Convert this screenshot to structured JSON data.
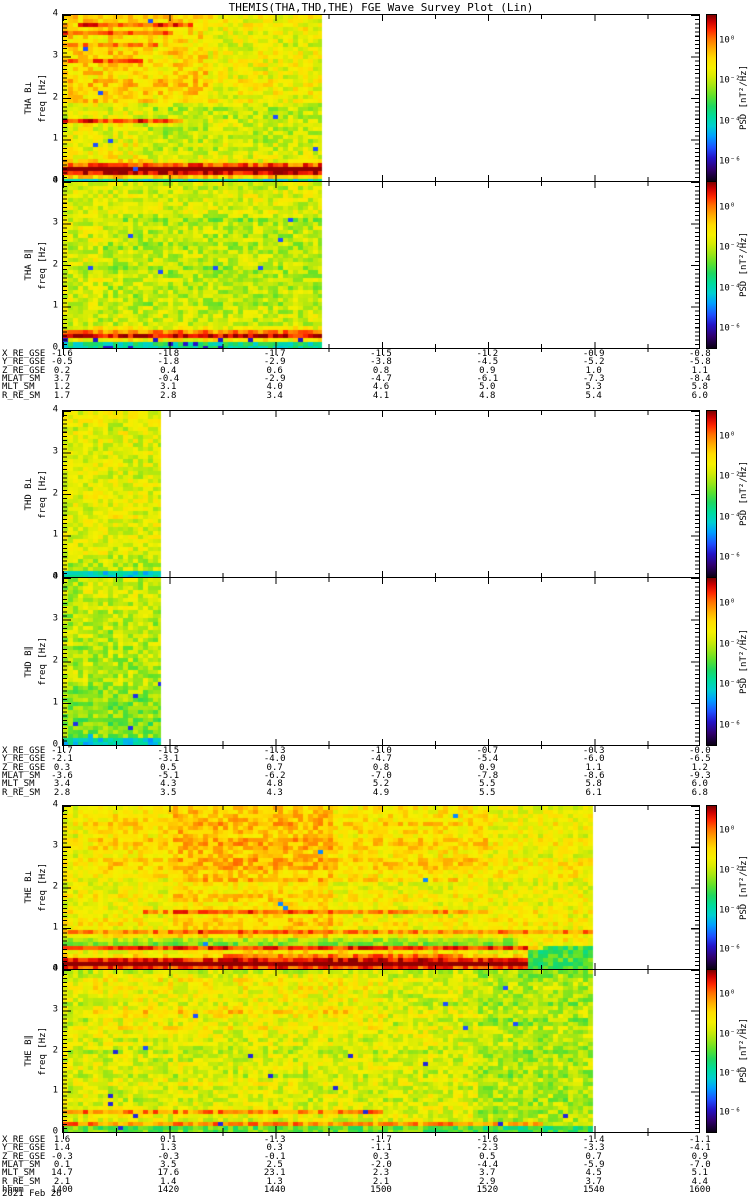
{
  "title": "THEMIS(THA,THD,THE) FGE Wave Survey Plot (Lin)",
  "colorbar": {
    "label": "PSD [nT²/Hz]",
    "ticks": [
      "10⁰",
      "10⁻²",
      "10⁻⁴",
      "10⁻⁶"
    ]
  },
  "axis": {
    "freq_label": "freq [Hz]",
    "yticks": [
      "4",
      "3",
      "2",
      "1",
      "0"
    ],
    "time_label": "hhmm",
    "date_label": "2021 Feb 26"
  },
  "chart_data": {
    "type": "heatmap",
    "subtype": "wave-power-spectrogram",
    "ylim": [
      0,
      4
    ],
    "ylabel": "freq [Hz]",
    "colorbar_label": "PSD [nT²/Hz]",
    "colorbar_ticks": [
      "10⁰",
      "10⁻²",
      "10⁻⁴",
      "10⁻⁶"
    ],
    "time_ticks": [
      "1400",
      "1420",
      "1440",
      "1500",
      "1520",
      "1540",
      "1600"
    ],
    "date": "2021 Feb 26",
    "groups": [
      {
        "probe": "THA",
        "panels": [
          {
            "name": "THA B⊥",
            "ylabel": "freq [Hz]",
            "coverage": 0.407,
            "seed": 11,
            "base": 0.67,
            "noise": 0.085,
            "shades": [
              {
                "f0": 1.9,
                "f1": 4.0,
                "x0": 0,
                "x1": 0.55,
                "dv": 0.06
              },
              {
                "f0": 0.45,
                "f1": 1.9,
                "x0": 0.3,
                "x1": 1,
                "dv": -0.05
              },
              {
                "f0": 0.0,
                "f1": 0.09,
                "x0": 0,
                "x1": 1,
                "dv": -0.3
              }
            ],
            "bands": [
              {
                "f": 0.27,
                "hw": 0.11,
                "amp": 0.34,
                "x0": 0,
                "x1": 1
              },
              {
                "f": 0.27,
                "hw": 0.2,
                "amp": 0.1,
                "x0": 0,
                "x1": 1
              },
              {
                "f": 1.45,
                "hw": 0.04,
                "amp": 0.22,
                "x0": 0,
                "x1": 0.45
              },
              {
                "f": 3.55,
                "hw": 0.05,
                "amp": 0.18,
                "x0": 0,
                "x1": 0.42
              },
              {
                "f": 3.3,
                "hw": 0.035,
                "amp": 0.16,
                "x0": 0,
                "x1": 0.35
              },
              {
                "f": 2.9,
                "hw": 0.03,
                "amp": 0.13,
                "x0": 0,
                "x1": 0.3
              },
              {
                "f": 3.75,
                "hw": 0.03,
                "amp": 0.15,
                "x0": 0.05,
                "x1": 0.5
              }
            ],
            "specks": [
              {
                "p": 0.003,
                "v": 0.2,
                "f0": 0,
                "f1": 4
              }
            ]
          },
          {
            "name": "THA B∥",
            "ylabel": "freq [Hz]",
            "coverage": 0.407,
            "seed": 22,
            "base": 0.63,
            "noise": 0.085,
            "shades": [
              {
                "f0": 0.0,
                "f1": 0.18,
                "x0": 0,
                "x1": 1,
                "dv": -0.24
              },
              {
                "f0": 1.0,
                "f1": 3.2,
                "x0": 0.15,
                "x1": 1,
                "dv": -0.035
              }
            ],
            "bands": [
              {
                "f": 0.32,
                "hw": 0.08,
                "amp": 0.3,
                "x0": 0,
                "x1": 1
              },
              {
                "f": 0.32,
                "hw": 0.15,
                "amp": 0.08,
                "x0": 0,
                "x1": 1
              }
            ],
            "specks": [
              {
                "p": 0.004,
                "v": 0.2,
                "f0": 0,
                "f1": 4
              },
              {
                "p": 0.08,
                "v": 0.14,
                "f0": 0,
                "f1": 0.25
              }
            ]
          }
        ],
        "ephemeris": {
          "rows": [
            {
              "label": "X_RE_GSE",
              "values": [
                "-1.6",
                "-1.8",
                "-1.7",
                "-1.5",
                "-1.2",
                "-0.9",
                "-0.8"
              ]
            },
            {
              "label": "Y_RE_GSE",
              "values": [
                "-0.5",
                "-1.8",
                "-2.9",
                "-3.8",
                "-4.5",
                "-5.2",
                "-5.8"
              ]
            },
            {
              "label": "Z_RE_GSE",
              "values": [
                "0.2",
                "0.4",
                "0.6",
                "0.8",
                "0.9",
                "1.0",
                "1.1"
              ]
            },
            {
              "label": "MLAT_SM",
              "values": [
                "3.7",
                "-0.4",
                "-2.9",
                "-4.7",
                "-6.1",
                "-7.3",
                "-8.4"
              ]
            },
            {
              "label": "MLT_SM",
              "values": [
                "1.2",
                "3.1",
                "4.0",
                "4.6",
                "5.0",
                "5.3",
                "5.8"
              ]
            },
            {
              "label": "R_RE_SM",
              "values": [
                "1.7",
                "2.8",
                "3.4",
                "4.1",
                "4.8",
                "5.4",
                "6.0"
              ]
            }
          ]
        }
      },
      {
        "probe": "THD",
        "panels": [
          {
            "name": "THD B⊥",
            "ylabel": "freq [Hz]",
            "coverage": 0.154,
            "seed": 33,
            "base": 0.65,
            "noise": 0.08,
            "shades": [
              {
                "f0": 0.0,
                "f1": 0.14,
                "x0": 0,
                "x1": 1,
                "dv": -0.28
              },
              {
                "f0": 0.0,
                "f1": 0.5,
                "x0": 0,
                "x1": 1,
                "dv": -0.04
              }
            ],
            "bands": [],
            "specks": [
              {
                "p": 0.003,
                "v": 0.2,
                "f0": 0,
                "f1": 1
              }
            ]
          },
          {
            "name": "THD B∥",
            "ylabel": "freq [Hz]",
            "coverage": 0.154,
            "seed": 44,
            "base": 0.6,
            "noise": 0.085,
            "shades": [
              {
                "f0": 0.0,
                "f1": 1.4,
                "x0": 0,
                "x1": 1,
                "dv": -0.05
              },
              {
                "f0": 0.0,
                "f1": 0.2,
                "x0": 0,
                "x1": 1,
                "dv": -0.22
              },
              {
                "f0": 3.0,
                "f1": 4.0,
                "x0": 0.2,
                "x1": 1,
                "dv": 0.03
              }
            ],
            "bands": [],
            "specks": [
              {
                "p": 0.015,
                "v": 0.17,
                "f0": 0,
                "f1": 1.5
              },
              {
                "p": 0.05,
                "v": 0.3,
                "f0": 0,
                "f1": 0.3
              }
            ]
          }
        ],
        "ephemeris": {
          "rows": [
            {
              "label": "X_RE_GSE",
              "values": [
                "-1.7",
                "-1.5",
                "-1.3",
                "-1.0",
                "-0.7",
                "-0.3",
                "-0.0"
              ]
            },
            {
              "label": "Y_RE_GSE",
              "values": [
                "-2.1",
                "-3.1",
                "-4.0",
                "-4.7",
                "-5.4",
                "-6.0",
                "-6.5"
              ]
            },
            {
              "label": "Z_RE_GSE",
              "values": [
                "0.3",
                "0.5",
                "0.7",
                "0.8",
                "0.9",
                "1.1",
                "1.2"
              ]
            },
            {
              "label": "MLAT_SM",
              "values": [
                "-3.6",
                "-5.1",
                "-6.2",
                "-7.0",
                "-7.8",
                "-8.6",
                "-9.3"
              ]
            },
            {
              "label": "MLT_SM",
              "values": [
                "3.4",
                "4.3",
                "4.8",
                "5.2",
                "5.5",
                "5.8",
                "6.0"
              ]
            },
            {
              "label": "R_RE_SM",
              "values": [
                "2.8",
                "3.5",
                "4.3",
                "4.9",
                "5.5",
                "6.1",
                "6.8"
              ]
            }
          ]
        }
      },
      {
        "probe": "THE",
        "panels": [
          {
            "name": "THE B⊥",
            "ylabel": "freq [Hz]",
            "coverage": 0.833,
            "seed": 55,
            "base": 0.68,
            "noise": 0.075,
            "shades": [
              {
                "f0": 0.8,
                "f1": 4.0,
                "x0": 0.2,
                "x1": 0.5,
                "dv": 0.05
              },
              {
                "f0": 2.4,
                "f1": 4.0,
                "x0": 0.05,
                "x1": 0.8,
                "dv": 0.04
              },
              {
                "f0": 0.55,
                "f1": 0.8,
                "x0": 0,
                "x1": 0.85,
                "dv": -0.12
              },
              {
                "f0": 0.0,
                "f1": 0.6,
                "x0": 0.87,
                "x1": 1,
                "dv": -0.2
              }
            ],
            "bands": [
              {
                "f": 0.12,
                "hw": 0.13,
                "amp": 0.36,
                "x0": 0,
                "x1": 0.87
              },
              {
                "f": 0.5,
                "hw": 0.035,
                "amp": 0.26,
                "x0": 0,
                "x1": 0.9
              },
              {
                "f": 0.32,
                "hw": 0.1,
                "amp": 0.12,
                "x0": 0.3,
                "x1": 0.75
              },
              {
                "f": 0.9,
                "hw": 0.025,
                "amp": 0.16,
                "x0": 0,
                "x1": 1
              },
              {
                "f": 1.4,
                "hw": 0.04,
                "amp": 0.12,
                "x0": 0.15,
                "x1": 0.8
              },
              {
                "f": 1.65,
                "hw": 0.03,
                "amp": 0.1,
                "x0": 0.2,
                "x1": 0.85
              },
              {
                "f": 2.2,
                "hw": 0.035,
                "amp": 0.09,
                "x0": 0.2,
                "x1": 0.75
              }
            ],
            "specks": [
              {
                "p": 0.002,
                "v": 0.25,
                "f0": 0,
                "f1": 4
              }
            ]
          },
          {
            "name": "THE B∥",
            "ylabel": "freq [Hz]",
            "coverage": 0.833,
            "seed": 66,
            "base": 0.64,
            "noise": 0.085,
            "shades": [
              {
                "f0": 0.0,
                "f1": 4.0,
                "x0": 0.78,
                "x1": 1,
                "dv": -0.05
              },
              {
                "f0": 0.0,
                "f1": 0.1,
                "x0": 0,
                "x1": 1,
                "dv": -0.12
              },
              {
                "f0": 2.5,
                "f1": 3.9,
                "x0": 0.05,
                "x1": 0.6,
                "dv": 0.04
              }
            ],
            "bands": [
              {
                "f": 0.5,
                "hw": 0.03,
                "amp": 0.2,
                "x0": 0,
                "x1": 0.6
              },
              {
                "f": 0.2,
                "hw": 0.025,
                "amp": 0.18,
                "x0": 0,
                "x1": 0.9
              },
              {
                "f": 3.0,
                "hw": 0.04,
                "amp": 0.1,
                "x0": 0.1,
                "x1": 0.55
              },
              {
                "f": 1.15,
                "hw": 0.03,
                "amp": 0.1,
                "x0": 0.05,
                "x1": 0.5
              }
            ],
            "specks": [
              {
                "p": 0.008,
                "v": 0.16,
                "f0": 0,
                "f1": 2
              },
              {
                "p": 0.003,
                "v": 0.2,
                "f0": 2,
                "f1": 4
              }
            ]
          }
        ],
        "ephemeris": {
          "rows": [
            {
              "label": "X_RE_GSE",
              "values": [
                "1.6",
                "0.1",
                "-1.3",
                "-1.7",
                "-1.6",
                "-1.4",
                "-1.1"
              ]
            },
            {
              "label": "Y_RE_GSE",
              "values": [
                "1.4",
                "1.3",
                "0.3",
                "-1.1",
                "-2.3",
                "-3.3",
                "-4.1"
              ]
            },
            {
              "label": "Z_RE_GSE",
              "values": [
                "-0.3",
                "-0.3",
                "-0.1",
                "0.3",
                "0.5",
                "0.7",
                "0.9"
              ]
            },
            {
              "label": "MLAT_SM",
              "values": [
                "0.1",
                "3.5",
                "2.5",
                "-2.0",
                "-4.4",
                "-5.9",
                "-7.0"
              ]
            },
            {
              "label": "MLT_SM",
              "values": [
                "14.7",
                "17.6",
                "23.1",
                "2.3",
                "3.7",
                "4.5",
                "5.1"
              ]
            },
            {
              "label": "R_RE_SM",
              "values": [
                "2.1",
                "1.4",
                "1.3",
                "2.1",
                "2.9",
                "3.7",
                "4.4"
              ]
            }
          ]
        }
      }
    ]
  }
}
